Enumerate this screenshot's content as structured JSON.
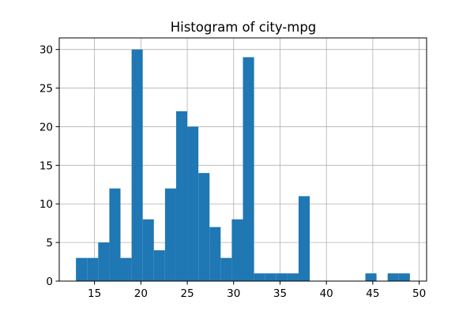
{
  "chart_data": {
    "type": "bar",
    "title": "Histogram of city-mpg",
    "xlabel": "",
    "ylabel": "",
    "xlim": [
      11.2,
      50.8
    ],
    "ylim": [
      0,
      31.5
    ],
    "x_ticks": [
      15,
      20,
      25,
      30,
      35,
      40,
      45,
      50
    ],
    "y_ticks": [
      0,
      5,
      10,
      15,
      20,
      25,
      30
    ],
    "grid": true,
    "bar_color": "#1f77b4",
    "bins": [
      {
        "x0": 13.0,
        "x1": 14.2,
        "count": 3
      },
      {
        "x0": 14.2,
        "x1": 15.4,
        "count": 3
      },
      {
        "x0": 15.4,
        "x1": 16.6,
        "count": 5
      },
      {
        "x0": 16.6,
        "x1": 17.8,
        "count": 12
      },
      {
        "x0": 17.8,
        "x1": 19.0,
        "count": 3
      },
      {
        "x0": 19.0,
        "x1": 20.2,
        "count": 30
      },
      {
        "x0": 20.2,
        "x1": 21.4,
        "count": 8
      },
      {
        "x0": 21.4,
        "x1": 22.6,
        "count": 4
      },
      {
        "x0": 22.6,
        "x1": 23.8,
        "count": 12
      },
      {
        "x0": 23.8,
        "x1": 25.0,
        "count": 22
      },
      {
        "x0": 25.0,
        "x1": 26.2,
        "count": 20
      },
      {
        "x0": 26.2,
        "x1": 27.4,
        "count": 14
      },
      {
        "x0": 27.4,
        "x1": 28.6,
        "count": 7
      },
      {
        "x0": 28.6,
        "x1": 29.8,
        "count": 3
      },
      {
        "x0": 29.8,
        "x1": 31.0,
        "count": 8
      },
      {
        "x0": 31.0,
        "x1": 32.2,
        "count": 29
      },
      {
        "x0": 32.2,
        "x1": 33.4,
        "count": 1
      },
      {
        "x0": 33.4,
        "x1": 34.6,
        "count": 1
      },
      {
        "x0": 34.6,
        "x1": 35.8,
        "count": 1
      },
      {
        "x0": 35.8,
        "x1": 37.0,
        "count": 1
      },
      {
        "x0": 37.0,
        "x1": 38.2,
        "count": 11
      },
      {
        "x0": 38.2,
        "x1": 39.4,
        "count": 0
      },
      {
        "x0": 39.4,
        "x1": 40.6,
        "count": 0
      },
      {
        "x0": 40.6,
        "x1": 41.8,
        "count": 0
      },
      {
        "x0": 41.8,
        "x1": 43.0,
        "count": 0
      },
      {
        "x0": 43.0,
        "x1": 44.2,
        "count": 0
      },
      {
        "x0": 44.2,
        "x1": 45.4,
        "count": 1
      },
      {
        "x0": 45.4,
        "x1": 46.6,
        "count": 0
      },
      {
        "x0": 46.6,
        "x1": 47.8,
        "count": 1
      },
      {
        "x0": 47.8,
        "x1": 49.0,
        "count": 1
      }
    ]
  }
}
